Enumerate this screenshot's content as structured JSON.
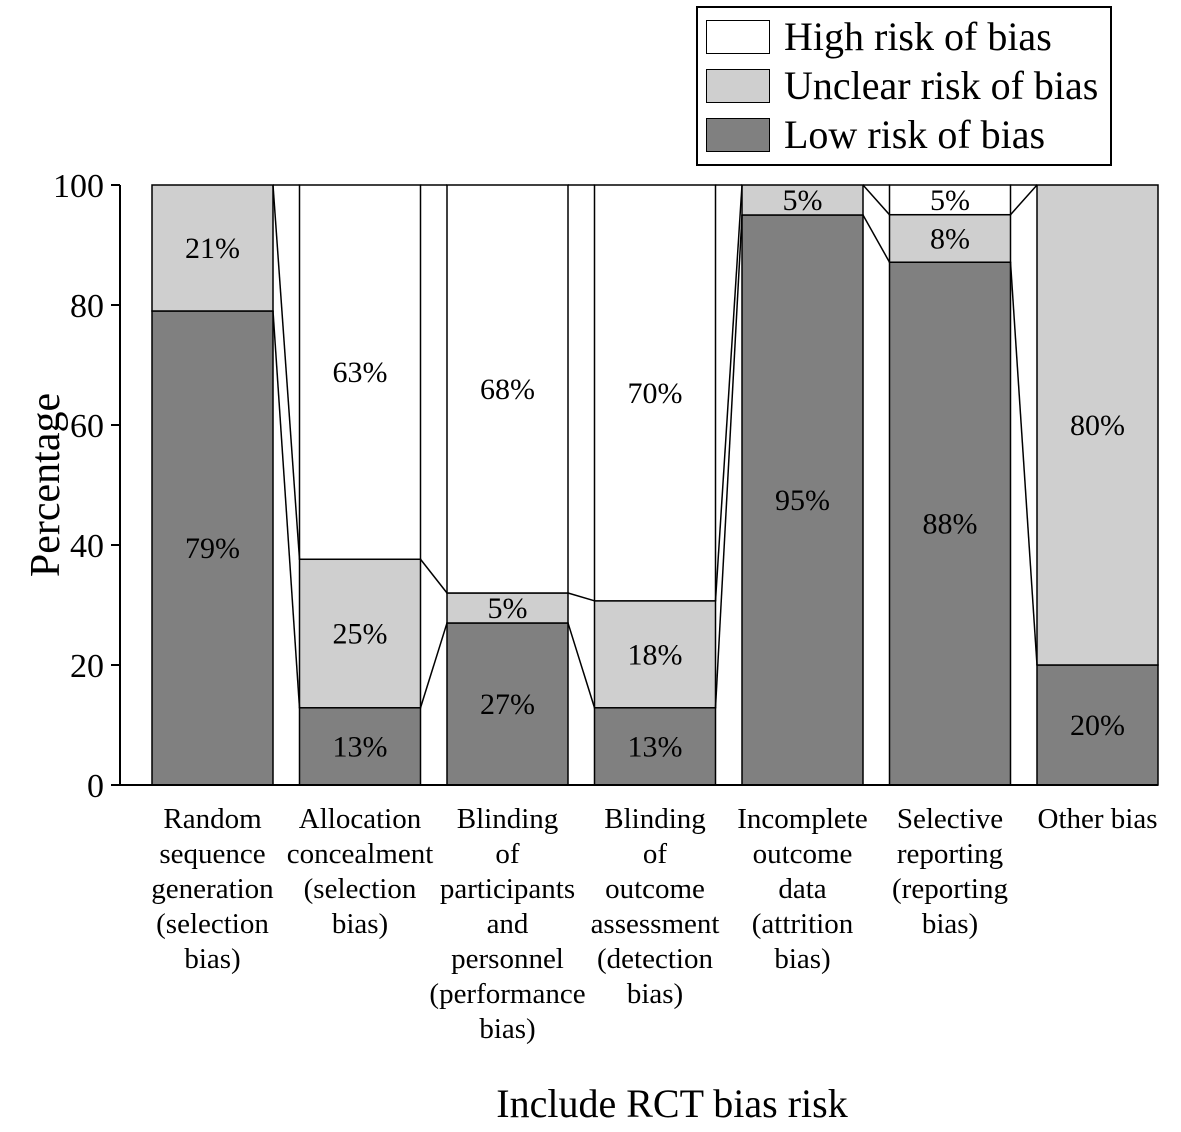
{
  "chart_data": {
    "type": "bar",
    "stacked": true,
    "title": "",
    "xlabel": "Include RCT bias risk",
    "ylabel": "Percentage",
    "ylim": [
      0,
      100
    ],
    "yticks": [
      0,
      20,
      40,
      60,
      80,
      100
    ],
    "grid": false,
    "legend_position": "top-right",
    "bar_outline_color": "#000000",
    "value_label_format": "{value}%",
    "categories": [
      "Random sequence generation (selection bias)",
      "Allocation concealment (selection bias)",
      "Blinding of participants and personnel (performance bias)",
      "Blinding of outcome assessment (detection bias)",
      "Incomplete outcome data (attrition bias)",
      "Selective reporting (reporting bias)",
      "Other bias"
    ],
    "category_label_lines": [
      [
        "Random",
        "sequence",
        "generation",
        "(selection",
        "bias)"
      ],
      [
        "Allocation",
        "concealment",
        "(selection",
        "bias)"
      ],
      [
        "Blinding",
        "of",
        "participants",
        "and",
        "personnel",
        "(performance",
        "bias)"
      ],
      [
        "Blinding",
        "of",
        "outcome",
        "assessment",
        "(detection",
        "bias)"
      ],
      [
        "Incomplete",
        "outcome",
        "data",
        "(attrition",
        "bias)"
      ],
      [
        "Selective",
        "reporting",
        "(reporting",
        "bias)"
      ],
      [
        "Other bias"
      ]
    ],
    "series": [
      {
        "name": "Low risk of bias",
        "color": "#808080",
        "values": [
          79,
          13,
          27,
          13,
          95,
          88,
          20
        ]
      },
      {
        "name": "Unclear risk of bias",
        "color": "#cfcfcf",
        "values": [
          21,
          25,
          5,
          18,
          5,
          8,
          80
        ]
      },
      {
        "name": "High risk of bias",
        "color": "#ffffff",
        "values": [
          0,
          63,
          68,
          70,
          0,
          5,
          0
        ]
      }
    ],
    "legend": [
      {
        "label": "High risk of bias",
        "color": "#ffffff"
      },
      {
        "label": "Unclear risk of bias",
        "color": "#cfcfcf"
      },
      {
        "label": "Low risk of bias",
        "color": "#808080"
      }
    ]
  }
}
